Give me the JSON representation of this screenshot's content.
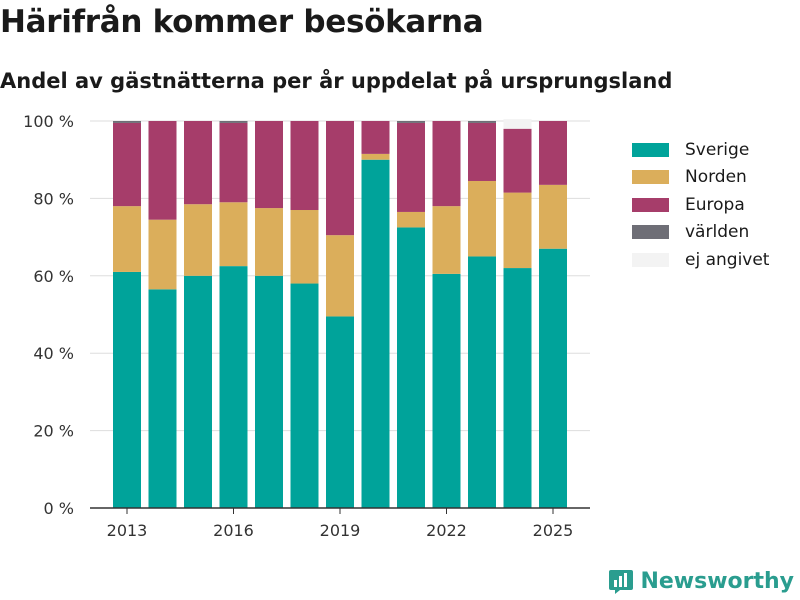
{
  "header": {
    "title": "Härifrån kommer besökarna",
    "subtitle": "Andel av gästnätterna per år uppdelat på ursprungsland"
  },
  "brand": {
    "name": "Newsworthy",
    "icon": "bar-chart-badge-icon",
    "color": "#2a9d8f"
  },
  "chart_data": {
    "type": "bar",
    "stacked": true,
    "categories": [
      "2013",
      "2014",
      "2015",
      "2016",
      "2017",
      "2018",
      "2019",
      "2020",
      "2021",
      "2022",
      "2023",
      "2024",
      "2025"
    ],
    "x_tick_labels": [
      "2013",
      "2016",
      "2019",
      "2022",
      "2025"
    ],
    "y_tick_labels": [
      "0 %",
      "20 %",
      "40 %",
      "60 %",
      "80 %",
      "100 %"
    ],
    "ylim": [
      0,
      100
    ],
    "grid": true,
    "legend_position": "right",
    "series": [
      {
        "name": "Sverige",
        "color": "#00a39a",
        "values": [
          61,
          56.5,
          60,
          62.5,
          60,
          58,
          49.5,
          90,
          72.5,
          60.5,
          65,
          62,
          67
        ]
      },
      {
        "name": "Norden",
        "color": "#dbae5b",
        "values": [
          17,
          18,
          18.5,
          16.5,
          17.5,
          19,
          21,
          1.5,
          4,
          17.5,
          19.5,
          19.5,
          16.5
        ]
      },
      {
        "name": "Europa",
        "color": "#a63d6a",
        "values": [
          21.5,
          25.5,
          21.5,
          20.5,
          22.5,
          23,
          29.5,
          8.5,
          23,
          22,
          15,
          16.5,
          16.5
        ]
      },
      {
        "name": "världen",
        "color": "#6e6e76",
        "values": [
          0.5,
          0,
          0,
          0.5,
          0,
          0,
          0,
          0,
          0.5,
          0,
          0.5,
          0,
          0
        ]
      },
      {
        "name": "ej angivet",
        "color": "#f3f3f3",
        "values": [
          0,
          0,
          0,
          0,
          0,
          0,
          0,
          0,
          0,
          0,
          0,
          2.5,
          0
        ]
      }
    ]
  }
}
